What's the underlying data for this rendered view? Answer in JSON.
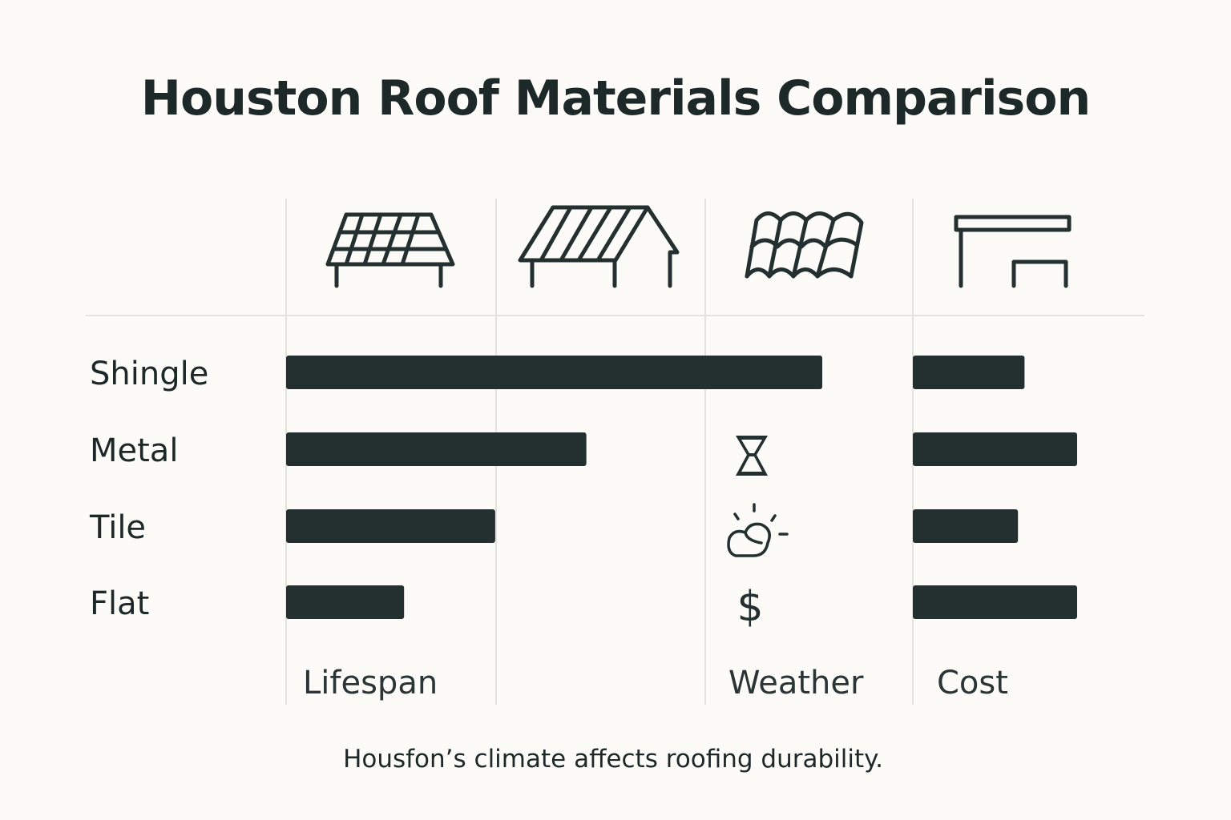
{
  "chart_data": {
    "type": "bar",
    "orientation": "horizontal",
    "title": "Houston Roof Materials Comparison",
    "caption": "Housfon’s climate affects roofing durability.",
    "categories": [
      "Shingle",
      "Metal",
      "Tile",
      "Flat"
    ],
    "column_labels": [
      "Lifespan",
      "Weather",
      "Cost"
    ],
    "column_icons": [
      "solar-panel-roof-icon",
      "gable-roof-icon",
      "tile-roof-icon",
      "flat-roof-icon"
    ],
    "weather_icons": [
      "hourglass-icon",
      "sun-cloud-icon",
      "dollar-icon"
    ],
    "series": [
      {
        "name": "Lifespan",
        "values": [
          100,
          56,
          39,
          22
        ]
      },
      {
        "name": "Cost",
        "values": [
          68,
          100,
          64,
          100
        ]
      }
    ],
    "value_units": "relative (percent of longest bar, no axis printed)",
    "grid": true,
    "bar_color": "#243030",
    "grid_color": "#e2e2df",
    "background": "#fcfbf8"
  }
}
